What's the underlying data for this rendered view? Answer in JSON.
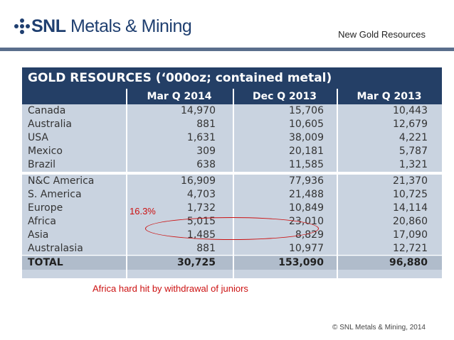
{
  "header": {
    "logo_bold": "SNL",
    "logo_rest": " Metals & Mining",
    "slide_title": "New Gold Resources"
  },
  "table": {
    "title": "GOLD RESOURCES (‘000oz; contained metal)",
    "columns": [
      "Mar Q 2014",
      "Dec Q 2013",
      "Mar Q 2013"
    ],
    "countries": [
      {
        "name": "Canada",
        "v1": "14,970",
        "v2": "15,706",
        "v3": "10,443"
      },
      {
        "name": "Australia",
        "v1": "881",
        "v2": "10,605",
        "v3": "12,679"
      },
      {
        "name": "USA",
        "v1": "1,631",
        "v2": "38,009",
        "v3": "4,221"
      },
      {
        "name": "Mexico",
        "v1": "309",
        "v2": "20,181",
        "v3": "5,787"
      },
      {
        "name": "Brazil",
        "v1": "638",
        "v2": "11,585",
        "v3": "1,321"
      }
    ],
    "regions": [
      {
        "name": "N&C America",
        "v1": "16,909",
        "v2": "77,936",
        "v3": "21,370"
      },
      {
        "name": "S. America",
        "v1": "4,703",
        "v2": "21,488",
        "v3": "10,725"
      },
      {
        "name": "Europe",
        "v1": "1,732",
        "v2": "10,849",
        "v3": "14,114"
      },
      {
        "name": "Africa",
        "v1": "5,015",
        "v2": "23,010",
        "v3": "20,860"
      },
      {
        "name": "Asia",
        "v1": "1,485",
        "v2": "8,829",
        "v3": "17,090"
      },
      {
        "name": "Australasia",
        "v1": "881",
        "v2": "10,977",
        "v3": "12,721"
      }
    ],
    "total": {
      "name": "TOTAL",
      "v1": "30,725",
      "v2": "153,090",
      "v3": "96,880"
    }
  },
  "annotations": {
    "percent": "16.3%",
    "caption": "Africa hard hit by withdrawal of juniors"
  },
  "footer": {
    "copyright": "© SNL Metals & Mining, 2014"
  },
  "colors": {
    "header_navy": "#243f66",
    "table_body": "#c9d3e0",
    "annotation_red": "#cc1111"
  }
}
